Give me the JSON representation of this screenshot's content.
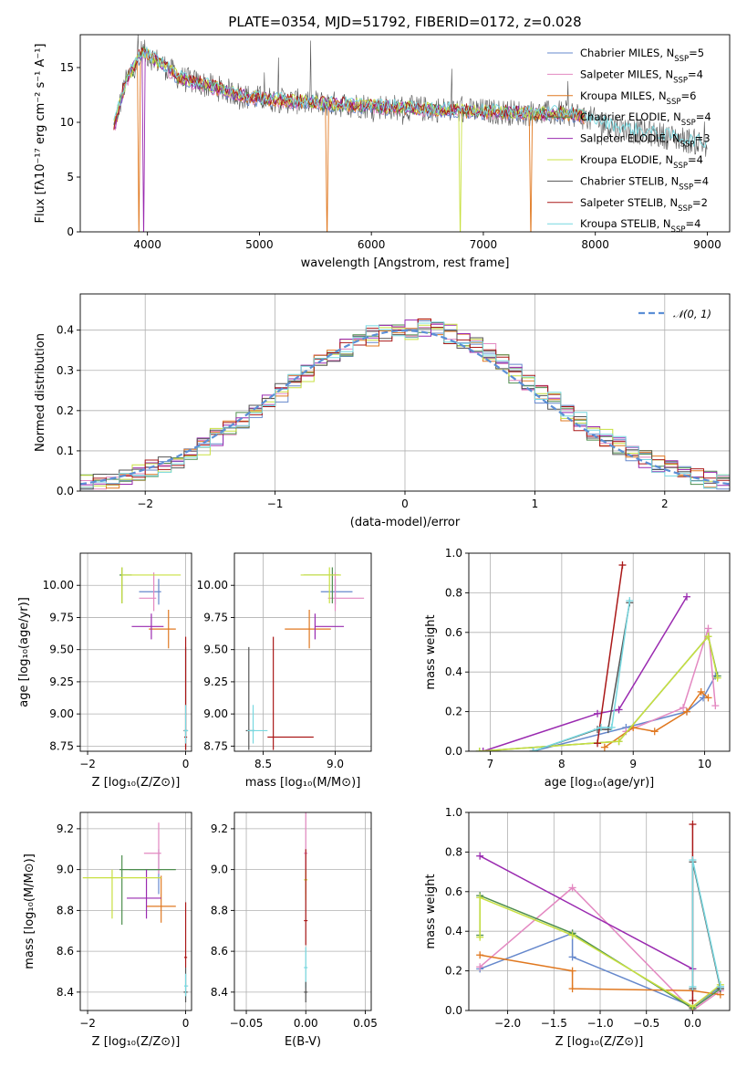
{
  "title": "PLATE=0354, MJD=51792, FIBERID=0172, z=0.028",
  "models": [
    {
      "name": "Chabrier MILES, N",
      "sub": "SSP",
      "tail": "=5",
      "color": "#6688cc"
    },
    {
      "name": "Salpeter MILES, N",
      "sub": "SSP",
      "tail": "=4",
      "color": "#e388c1"
    },
    {
      "name": "Kroupa MILES, N",
      "sub": "SSP",
      "tail": "=6",
      "color": "#e07820"
    },
    {
      "name": "Chabrier ELODIE, N",
      "sub": "SSP",
      "tail": "=4",
      "color": "#4e8e4e"
    },
    {
      "name": "Salpeter ELODIE, N",
      "sub": "SSP",
      "tail": "=3",
      "color": "#9a2ab0"
    },
    {
      "name": "Kroupa ELODIE, N",
      "sub": "SSP",
      "tail": "=4",
      "color": "#c8e040"
    },
    {
      "name": "Chabrier STELIB, N",
      "sub": "SSP",
      "tail": "=4",
      "color": "#555555"
    },
    {
      "name": "Salpeter STELIB, N",
      "sub": "SSP",
      "tail": "=2",
      "color": "#aa1818"
    },
    {
      "name": "Kroupa STELIB, N",
      "sub": "SSP",
      "tail": "=4",
      "color": "#77d8e0"
    }
  ],
  "chart_data": [
    {
      "type": "line",
      "id": "spectrum",
      "xlabel": "wavelength [Angstrom, rest frame]",
      "ylabel": "Flux [fλ10⁻¹⁷ erg cm⁻² s⁻¹ A⁻¹]",
      "xlim": [
        3400,
        9200
      ],
      "ylim": [
        0,
        18
      ],
      "xticks": [
        4000,
        5000,
        6000,
        7000,
        8000,
        9000
      ],
      "yticks": [
        0,
        5,
        10,
        15
      ],
      "spectrum_shape": {
        "x": [
          3700,
          3800,
          3950,
          4100,
          4300,
          4600,
          4900,
          5200,
          5600,
          6000,
          6500,
          7000,
          7500,
          7800,
          8200,
          8600,
          9000
        ],
        "y": [
          9.5,
          13.5,
          16.5,
          15.5,
          14.0,
          13.2,
          12.3,
          12.0,
          11.7,
          11.5,
          11.2,
          11.0,
          10.8,
          10.8,
          9.5,
          8.8,
          8.0
        ]
      },
      "dips": [
        {
          "x": 3920,
          "model": 2
        },
        {
          "x": 5600,
          "model": 2
        },
        {
          "x": 6790,
          "model": 5
        },
        {
          "x": 7430,
          "model": 2
        },
        {
          "x": 3970,
          "model": 4
        }
      ]
    },
    {
      "type": "line",
      "id": "residuals",
      "xlabel": "(data-model)/error",
      "ylabel": "Normed distribution",
      "xlim": [
        -2.5,
        2.5
      ],
      "ylim": [
        0,
        0.49
      ],
      "xticks": [
        -2,
        -1,
        0,
        1,
        2
      ],
      "yticks": [
        0.0,
        0.1,
        0.2,
        0.3,
        0.4
      ],
      "legend": "𝒩(0, 1)",
      "grid": true
    },
    {
      "type": "scatter",
      "id": "age_vs_Z",
      "xlabel": "Z [log₁₀(Z/Z⊙)]",
      "ylabel": "age  [log₁₀(age/yr)]",
      "xlim": [
        -2.15,
        0.12
      ],
      "ylim": [
        8.71,
        10.25
      ],
      "xticks": [
        -2,
        0
      ],
      "yticks": [
        8.75,
        9.0,
        9.25,
        9.5,
        9.75,
        10.0
      ],
      "grid": true,
      "points": [
        {
          "model": 0,
          "x": -0.55,
          "xerr": [
            0.4,
            0.05
          ],
          "y": 9.95,
          "yerr": [
            0.1,
            0.1
          ]
        },
        {
          "model": 1,
          "x": -0.65,
          "xerr": [
            0.3,
            0.05
          ],
          "y": 9.9,
          "yerr": [
            0.1,
            0.2
          ]
        },
        {
          "model": 2,
          "x": -0.35,
          "xerr": [
            0.4,
            0.15
          ],
          "y": 9.66,
          "yerr": [
            0.15,
            0.15
          ]
        },
        {
          "model": 3,
          "x": -1.3,
          "xerr": [
            0.05,
            0.2
          ],
          "y": 10.08,
          "yerr": [
            0.22,
            0.06
          ]
        },
        {
          "model": 4,
          "x": -0.7,
          "xerr": [
            0.4,
            0.25
          ],
          "y": 9.68,
          "yerr": [
            0.1,
            0.1
          ]
        },
        {
          "model": 5,
          "x": -1.3,
          "xerr": [
            0.0,
            1.2
          ],
          "y": 10.08,
          "yerr": [
            0.22,
            0.06
          ]
        },
        {
          "model": 6,
          "x": 0.0,
          "xerr": [
            0.04,
            0.04
          ],
          "y": 8.87,
          "yerr": [
            0.15,
            0.65
          ]
        },
        {
          "model": 7,
          "x": 0.0,
          "xerr": [
            0.03,
            0.03
          ],
          "y": 8.82,
          "yerr": [
            0.1,
            0.78
          ]
        },
        {
          "model": 8,
          "x": 0.0,
          "xerr": [
            0.03,
            0.05
          ],
          "y": 8.87,
          "yerr": [
            0.1,
            0.2
          ]
        }
      ]
    },
    {
      "type": "scatter",
      "id": "age_vs_mass",
      "xlabel": "mass [log₁₀(M/M⊙)]",
      "xlim": [
        8.3,
        9.25
      ],
      "ylim": [
        8.71,
        10.25
      ],
      "xticks": [
        8.5,
        9.0
      ],
      "yticks": [
        8.75,
        9.0,
        9.25,
        9.5,
        9.75,
        10.0
      ],
      "grid": true,
      "points": [
        {
          "model": 0,
          "x": 9.0,
          "xerr": [
            0.1,
            0.12
          ],
          "y": 9.95,
          "yerr": [
            0.1,
            0.1
          ]
        },
        {
          "model": 1,
          "x": 9.0,
          "xerr": [
            0.05,
            0.2
          ],
          "y": 9.9,
          "yerr": [
            0.1,
            0.2
          ]
        },
        {
          "model": 2,
          "x": 8.82,
          "xerr": [
            0.17,
            0.15
          ],
          "y": 9.66,
          "yerr": [
            0.15,
            0.15
          ]
        },
        {
          "model": 3,
          "x": 8.98,
          "xerr": [
            0.2,
            0.05
          ],
          "y": 10.08,
          "yerr": [
            0.22,
            0.06
          ]
        },
        {
          "model": 4,
          "x": 8.86,
          "xerr": [
            0.0,
            0.2
          ],
          "y": 9.68,
          "yerr": [
            0.1,
            0.1
          ]
        },
        {
          "model": 5,
          "x": 8.96,
          "xerr": [
            0.2,
            0.08
          ],
          "y": 10.08,
          "yerr": [
            0.22,
            0.06
          ]
        },
        {
          "model": 6,
          "x": 8.4,
          "xerr": [
            0.02,
            0.04
          ],
          "y": 8.87,
          "yerr": [
            0.15,
            0.65
          ]
        },
        {
          "model": 7,
          "x": 8.57,
          "xerr": [
            0.04,
            0.28
          ],
          "y": 8.82,
          "yerr": [
            0.1,
            0.78
          ]
        },
        {
          "model": 8,
          "x": 8.43,
          "xerr": [
            0.04,
            0.1
          ],
          "y": 8.87,
          "yerr": [
            0.1,
            0.2
          ]
        }
      ]
    },
    {
      "type": "line",
      "id": "massweight_vs_age",
      "xlabel": "age  [log₁₀(age/yr)]",
      "ylabel": "mass weight",
      "xlim": [
        6.7,
        10.35
      ],
      "ylim": [
        0,
        1.0
      ],
      "xticks": [
        7,
        8,
        9,
        10
      ],
      "yticks": [
        0.0,
        0.2,
        0.4,
        0.6,
        0.8,
        1.0
      ],
      "grid": true,
      "series": [
        {
          "model": 0,
          "x": [
            7.6,
            8.9,
            9.75,
            9.98,
            10.15
          ],
          "y": [
            0.0,
            0.12,
            0.2,
            0.27,
            0.38
          ]
        },
        {
          "model": 1,
          "x": [
            8.9,
            9.7,
            10.05,
            10.15
          ],
          "y": [
            0.1,
            0.22,
            0.62,
            0.23
          ]
        },
        {
          "model": 2,
          "x": [
            8.6,
            9.0,
            9.3,
            9.75,
            9.95,
            10.05
          ],
          "y": [
            0.02,
            0.12,
            0.1,
            0.2,
            0.3,
            0.27
          ]
        },
        {
          "model": 3,
          "x": [
            6.85,
            8.8,
            10.05,
            10.18
          ],
          "y": [
            0.0,
            0.05,
            0.58,
            0.38
          ]
        },
        {
          "model": 4,
          "x": [
            6.9,
            8.5,
            8.8,
            9.75
          ],
          "y": [
            0.0,
            0.19,
            0.21,
            0.78
          ]
        },
        {
          "model": 5,
          "x": [
            6.85,
            8.8,
            10.05,
            10.18
          ],
          "y": [
            0.0,
            0.05,
            0.58,
            0.37
          ]
        },
        {
          "model": 6,
          "x": [
            7.6,
            8.5,
            8.65,
            8.95
          ],
          "y": [
            0.0,
            0.11,
            0.11,
            0.75
          ]
        },
        {
          "model": 7,
          "x": [
            8.5,
            8.85
          ],
          "y": [
            0.04,
            0.94
          ]
        },
        {
          "model": 8,
          "x": [
            7.6,
            8.55,
            8.7,
            8.95
          ],
          "y": [
            0.0,
            0.12,
            0.12,
            0.76
          ]
        }
      ]
    },
    {
      "type": "scatter",
      "id": "mass_vs_Z",
      "xlabel": "Z [log₁₀(Z/Z⊙)]",
      "ylabel": "mass [log₁₀(M/M⊙)]",
      "xlim": [
        -2.15,
        0.12
      ],
      "ylim": [
        8.31,
        9.28
      ],
      "xticks": [
        -2,
        0
      ],
      "yticks": [
        8.4,
        8.6,
        8.8,
        9.0,
        9.2
      ],
      "grid": true,
      "points": [
        {
          "model": 0,
          "x": -0.55,
          "xerr": [
            0.6,
            0.05
          ],
          "y": 9.0,
          "yerr": [
            0.12,
            0.1
          ]
        },
        {
          "model": 1,
          "x": -0.55,
          "xerr": [
            0.3,
            0.05
          ],
          "y": 9.08,
          "yerr": [
            0.1,
            0.15
          ]
        },
        {
          "model": 2,
          "x": -0.5,
          "xerr": [
            0.3,
            0.3
          ],
          "y": 8.82,
          "yerr": [
            0.08,
            0.15
          ]
        },
        {
          "model": 3,
          "x": -1.3,
          "xerr": [
            0.05,
            1.1
          ],
          "y": 9.0,
          "yerr": [
            0.27,
            0.07
          ]
        },
        {
          "model": 4,
          "x": -0.8,
          "xerr": [
            0.4,
            0.3
          ],
          "y": 8.86,
          "yerr": [
            0.1,
            0.14
          ]
        },
        {
          "model": 5,
          "x": -1.5,
          "xerr": [
            0.6,
            1.0
          ],
          "y": 8.96,
          "yerr": [
            0.2,
            0.04
          ]
        },
        {
          "model": 6,
          "x": 0.0,
          "xerr": [
            0.04,
            0.04
          ],
          "y": 8.4,
          "yerr": [
            0.05,
            0.12
          ]
        },
        {
          "model": 7,
          "x": 0.0,
          "xerr": [
            0.03,
            0.03
          ],
          "y": 8.57,
          "yerr": [
            0.05,
            0.27
          ]
        },
        {
          "model": 8,
          "x": 0.0,
          "xerr": [
            0.03,
            0.05
          ],
          "y": 8.43,
          "yerr": [
            0.05,
            0.06
          ]
        }
      ]
    },
    {
      "type": "scatter",
      "id": "mass_vs_ebv",
      "xlabel": "E(B-V)",
      "xlim": [
        -0.06,
        0.055
      ],
      "ylim": [
        8.31,
        9.28
      ],
      "xticks": [
        -0.05,
        0.0,
        0.05
      ],
      "yticks": [
        8.4,
        8.6,
        8.8,
        9.0,
        9.2
      ],
      "grid": true,
      "points": [
        {
          "model": 1,
          "x": 0.0,
          "y": 9.08,
          "yerr": [
            0.2,
            0.2
          ]
        },
        {
          "model": 5,
          "x": 0.0,
          "y": 8.95,
          "yerr": [
            0.1,
            0.05
          ]
        },
        {
          "model": 7,
          "x": 0.0,
          "y": 8.75,
          "yerr": [
            0.12,
            0.35
          ]
        },
        {
          "model": 8,
          "x": 0.0,
          "y": 8.52,
          "yerr": [
            0.1,
            0.1
          ]
        },
        {
          "model": 6,
          "x": 0.0,
          "y": 8.4,
          "yerr": [
            0.05,
            0.05
          ]
        }
      ]
    },
    {
      "type": "line",
      "id": "massweight_vs_Z",
      "xlabel": "Z [log₁₀(Z/Z⊙)]",
      "ylabel": "mass weight",
      "xlim": [
        -2.42,
        0.4
      ],
      "ylim": [
        0,
        1.0
      ],
      "xticks": [
        -2.0,
        -1.5,
        -1.0,
        -0.5,
        0.0
      ],
      "yticks": [
        0.0,
        0.2,
        0.4,
        0.6,
        0.8,
        1.0
      ],
      "grid": true,
      "series": [
        {
          "model": 0,
          "x": [
            -2.3,
            -1.3,
            -1.3,
            0.0,
            0.3
          ],
          "y": [
            0.21,
            0.39,
            0.27,
            0.02,
            0.12
          ]
        },
        {
          "model": 1,
          "x": [
            -2.3,
            -1.3,
            0.0,
            0.3
          ],
          "y": [
            0.22,
            0.62,
            0.0,
            0.1
          ]
        },
        {
          "model": 2,
          "x": [
            -2.3,
            -1.3,
            -1.3,
            0.0,
            0.3
          ],
          "y": [
            0.28,
            0.2,
            0.11,
            0.1,
            0.08
          ]
        },
        {
          "model": 3,
          "x": [
            -2.3,
            -2.3,
            -1.3,
            0.0,
            0.3
          ],
          "y": [
            0.38,
            0.58,
            0.39,
            0.01,
            0.11
          ]
        },
        {
          "model": 4,
          "x": [
            -2.3,
            0.0
          ],
          "y": [
            0.78,
            0.21
          ]
        },
        {
          "model": 5,
          "x": [
            -2.3,
            -2.3,
            -1.3,
            0.0,
            0.3
          ],
          "y": [
            0.37,
            0.57,
            0.38,
            0.02,
            0.13
          ]
        },
        {
          "model": 6,
          "x": [
            0.0,
            0.0,
            0.3
          ],
          "y": [
            0.11,
            0.75,
            0.11
          ]
        },
        {
          "model": 7,
          "x": [
            0.0,
            0.0
          ],
          "y": [
            0.05,
            0.94
          ]
        },
        {
          "model": 8,
          "x": [
            0.0,
            0.0,
            0.3
          ],
          "y": [
            0.12,
            0.76,
            0.12
          ]
        }
      ]
    }
  ]
}
